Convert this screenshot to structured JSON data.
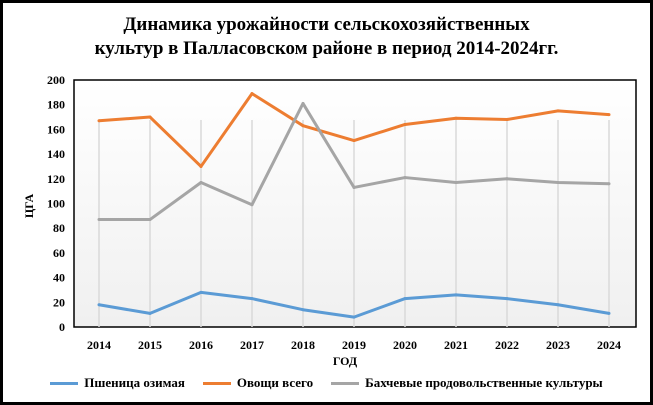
{
  "chart_data": {
    "type": "line",
    "title_line1": "Динамика урожайности сельскохозяйственных",
    "title_line2": "культур в Палласовском районе в период 2014-2024гг.",
    "xlabel": "ГОД",
    "ylabel": "ЦГА",
    "ylim": [
      0,
      200
    ],
    "yticks": [
      "0",
      "20",
      "40",
      "60",
      "80",
      "100",
      "120",
      "140",
      "160",
      "180",
      "200"
    ],
    "categories": [
      "2014",
      "2015",
      "2016",
      "2017",
      "2018",
      "2019",
      "2020",
      "2021",
      "2022",
      "2023",
      "2024"
    ],
    "series": [
      {
        "name": "Пшеница озимая",
        "color": "#5B9BD5",
        "values": [
          18,
          11,
          28,
          23,
          14,
          8,
          23,
          26,
          23,
          18,
          11
        ]
      },
      {
        "name": "Овощи всего",
        "color": "#ED7D31",
        "values": [
          167,
          170,
          130,
          189,
          163,
          151,
          164,
          169,
          168,
          175,
          172
        ]
      },
      {
        "name": "Бахчевые продовольственные культуры",
        "color": "#A5A5A5",
        "values": [
          87,
          87,
          117,
          99,
          181,
          113,
          121,
          117,
          120,
          117,
          116
        ]
      }
    ],
    "grid": "vertical",
    "legend_position": "bottom"
  }
}
